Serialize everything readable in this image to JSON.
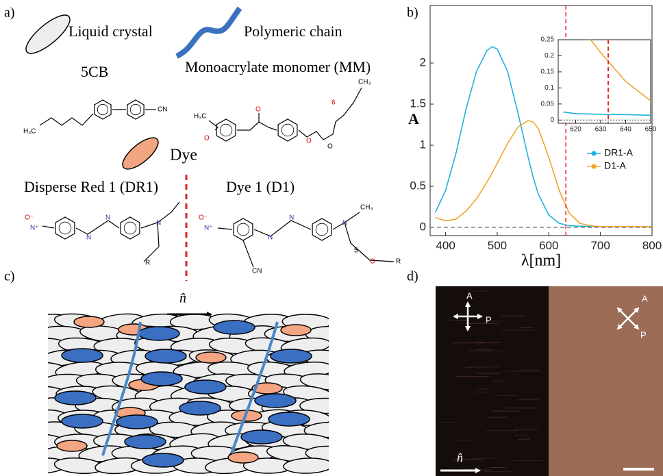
{
  "panel_labels": [
    "a)",
    "b)",
    "c)",
    "d)"
  ],
  "panel_a": {
    "legend": {
      "liquid_crystal": "Liquid crystal",
      "polymeric_chain": "Polymeric chain",
      "dye": "Dye"
    },
    "molecules": [
      "5CB",
      "Monoacrylate monomer (MM)",
      "Disperse Red 1 (DR1)",
      "Dye 1 (D1)"
    ],
    "atom_labels": [
      "H₃C",
      "CN",
      "H₃C",
      "O",
      "O",
      "O",
      "O",
      "6",
      "CH₃",
      "O⁻",
      "N⁺",
      "N",
      "N",
      "N",
      "R",
      "O⁻",
      "N⁺",
      "N",
      "N",
      "N",
      "CH₃",
      "5",
      "O",
      "R",
      "CN"
    ]
  },
  "chart_data": [
    {
      "type": "line",
      "xlabel": "λ[nm]",
      "ylabel": "A",
      "x": [
        380,
        400,
        420,
        440,
        460,
        480,
        490,
        500,
        520,
        540,
        560,
        570,
        580,
        600,
        620,
        640,
        660,
        680,
        700,
        750,
        800
      ],
      "series": [
        {
          "name": "DR1-A",
          "color": "#1fb0df",
          "values": [
            0.18,
            0.45,
            0.9,
            1.45,
            1.9,
            2.15,
            2.2,
            2.17,
            1.9,
            1.4,
            0.85,
            0.6,
            0.4,
            0.15,
            0.05,
            0.02,
            0.015,
            0.012,
            0.01,
            0.01,
            0.01
          ]
        },
        {
          "name": "D1-A",
          "color": "#f2a42a",
          "values": [
            0.12,
            0.08,
            0.1,
            0.2,
            0.35,
            0.55,
            0.66,
            0.78,
            1.02,
            1.22,
            1.3,
            1.28,
            1.2,
            0.85,
            0.45,
            0.17,
            0.05,
            0.02,
            0.01,
            0.01,
            0.01
          ]
        }
      ],
      "xlim": [
        370,
        800
      ],
      "xticks": [
        400,
        500,
        600,
        700,
        800
      ],
      "ylim": [
        -0.1,
        2.7
      ],
      "yticks": [
        0,
        0.5,
        1,
        1.5,
        2
      ],
      "vline": 633,
      "vline_color": "#e8282a",
      "hline": 0,
      "legend": "right"
    },
    {
      "type": "line",
      "x": [
        615,
        620,
        626,
        630,
        640,
        650
      ],
      "series": [
        {
          "name": "DR1-A",
          "color": "#1fb0df",
          "values": [
            0.025,
            0.02,
            0.019,
            0.018,
            0.017,
            0.015
          ]
        },
        {
          "name": "D1-A",
          "color": "#f2a42a",
          "values": [
            null,
            null,
            0.25,
            0.21,
            0.12,
            0.06
          ]
        }
      ],
      "xlim": [
        613,
        650
      ],
      "xticks": [
        620,
        630,
        640,
        650
      ],
      "ylim": [
        -0.01,
        0.25
      ],
      "yticks": [
        0,
        0.05,
        0.1,
        0.15,
        0.2,
        0.25
      ],
      "vline": 633,
      "vline_color": "#e8282a",
      "hline": 0
    }
  ],
  "panel_c": {
    "director": "n̂"
  },
  "panel_d": {
    "director": "n̂",
    "crossed_polarizers": {
      "analyzer": "A",
      "polarizer": "P"
    },
    "rotated_polarizers": {
      "analyzer": "A",
      "polarizer": "P"
    }
  }
}
